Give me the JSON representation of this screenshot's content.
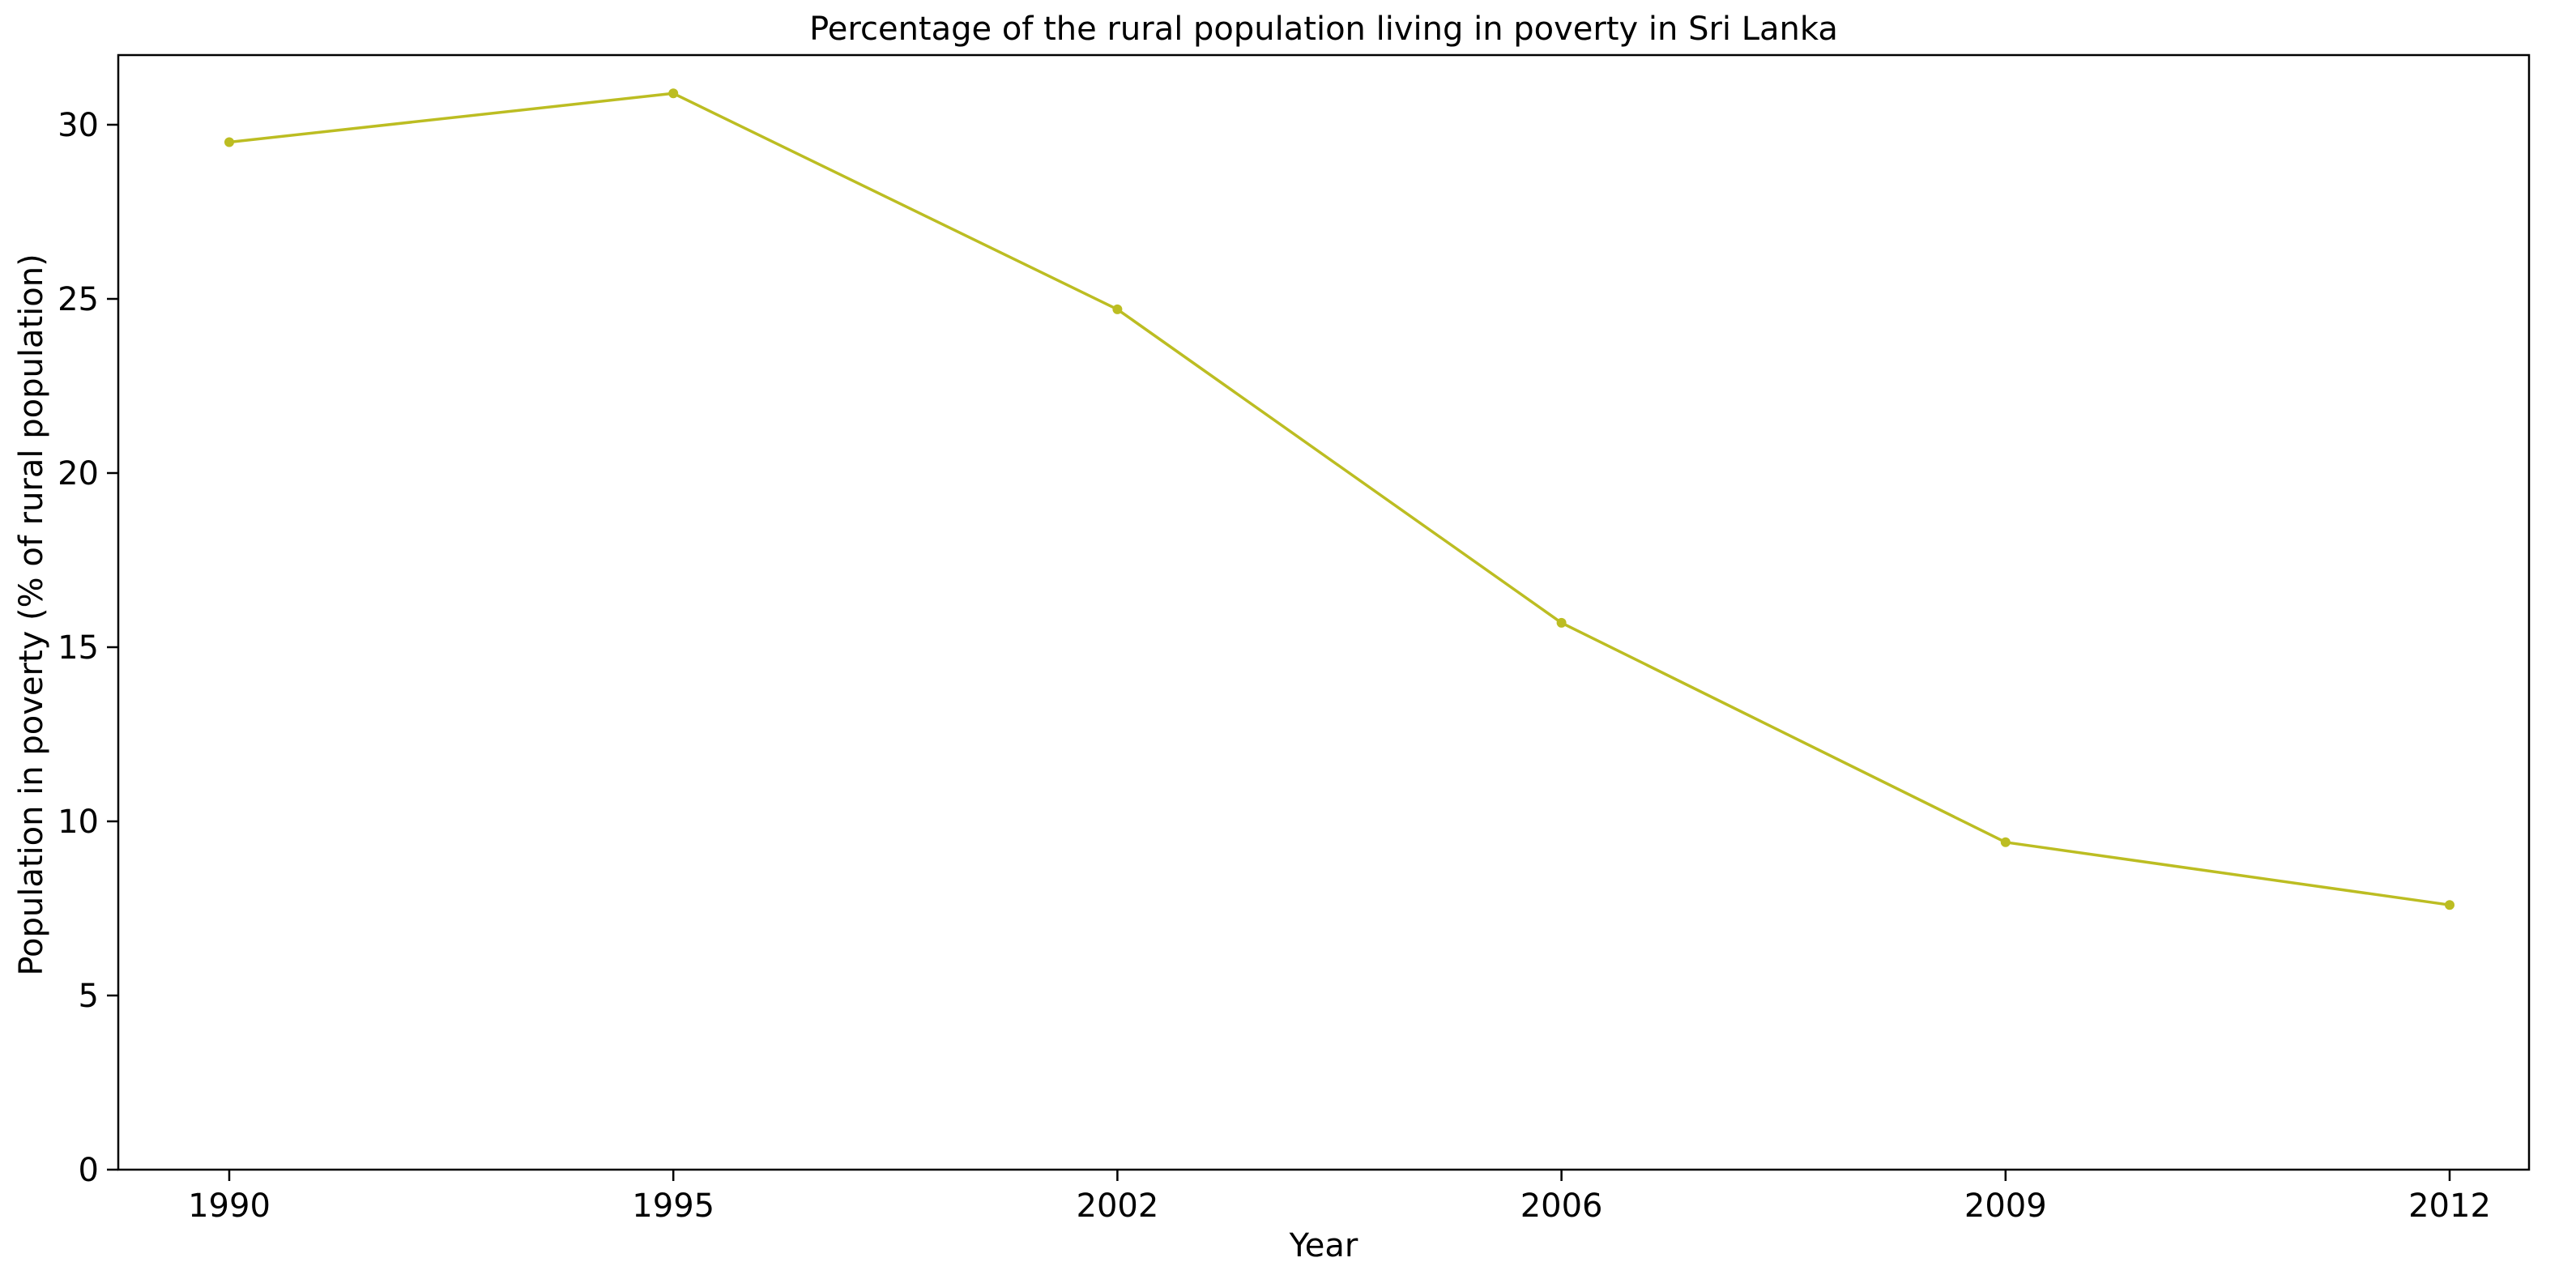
{
  "chart_data": {
    "type": "line",
    "title": "Percentage of the rural population living in poverty in Sri Lanka",
    "xlabel": "Year",
    "ylabel": "Population in poverty (% of rural population)",
    "categories": [
      "1990",
      "1995",
      "2002",
      "2006",
      "2009",
      "2012"
    ],
    "series": [
      {
        "values": [
          29.5,
          30.9,
          24.7,
          15.7,
          9.4,
          7.6
        ],
        "color": "#bcbd22"
      }
    ],
    "ylim": [
      0,
      32
    ],
    "yticks": [
      "0",
      "5",
      "10",
      "15",
      "20",
      "25",
      "30"
    ],
    "grid": false,
    "legend": "none"
  }
}
